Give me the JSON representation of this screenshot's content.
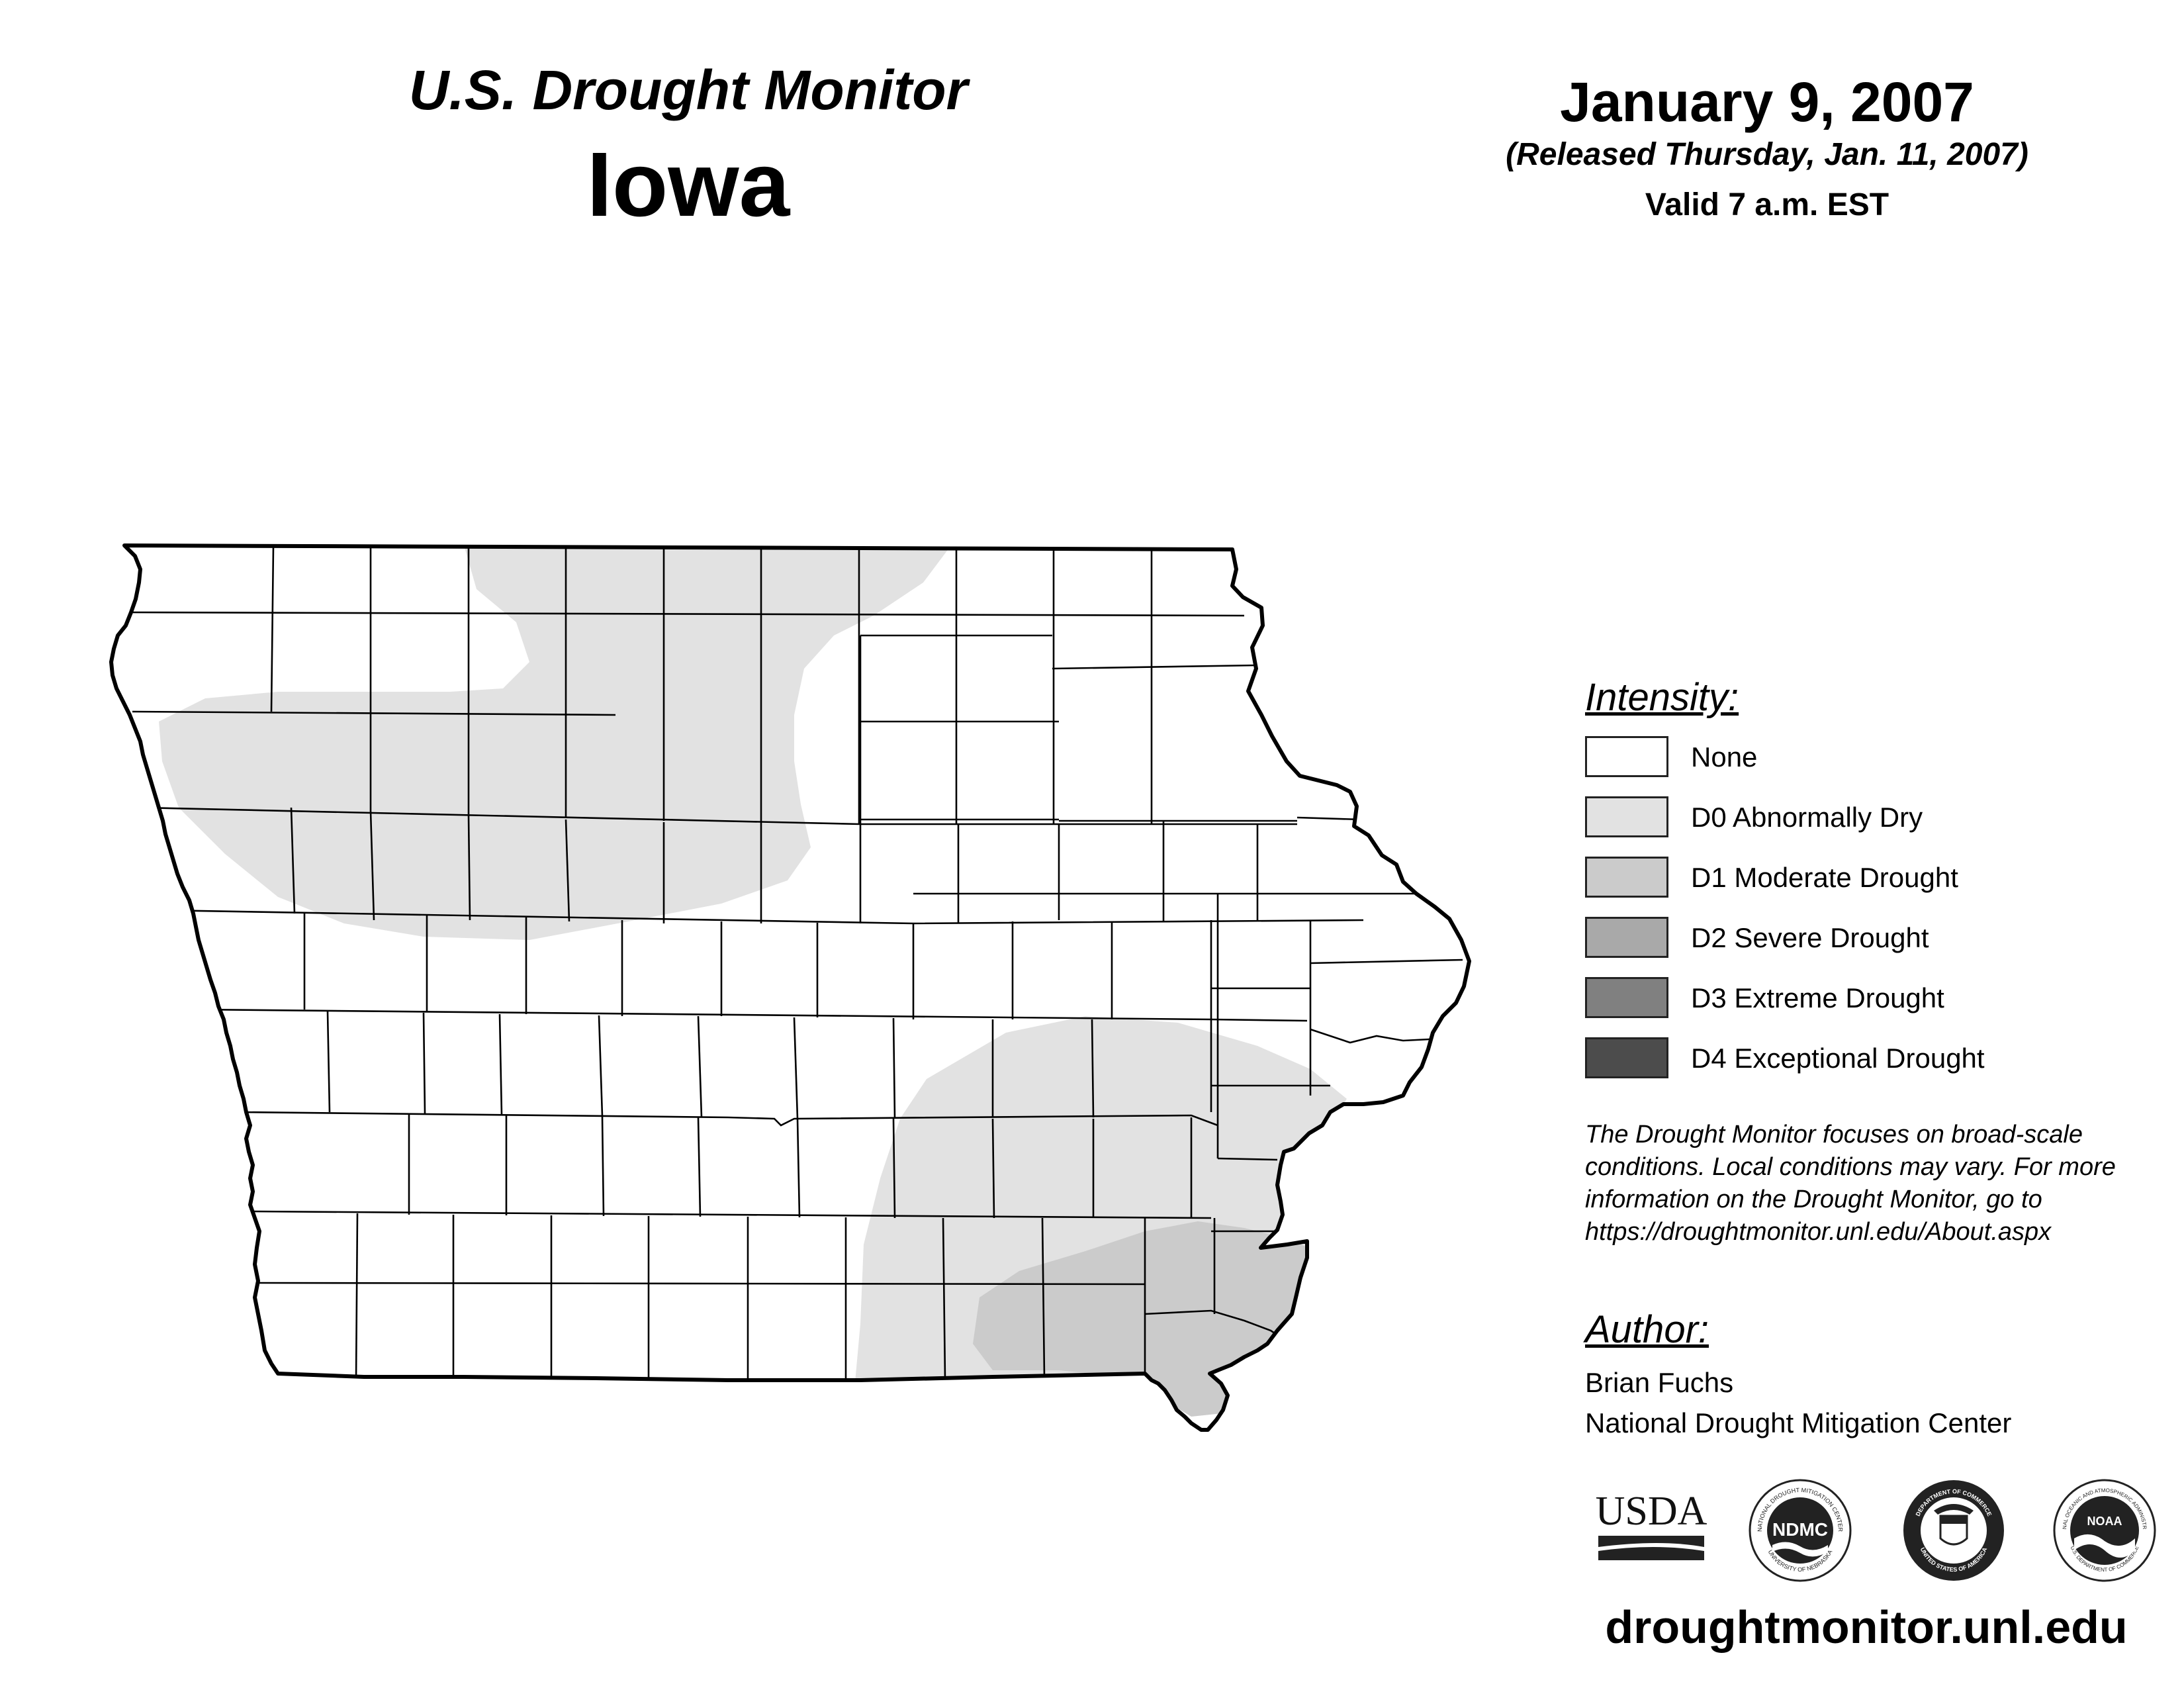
{
  "header": {
    "monitor_title": "U.S. Drought Monitor",
    "state": "Iowa",
    "date": "January 9, 2007",
    "released": "(Released Thursday, Jan. 11, 2007)",
    "valid": "Valid 7 a.m. EST"
  },
  "legend": {
    "title": "Intensity:",
    "items": [
      {
        "label": "None",
        "color": "#ffffff"
      },
      {
        "label": "D0 Abnormally Dry",
        "color": "#e2e2e2"
      },
      {
        "label": "D1 Moderate Drought",
        "color": "#cbcbcb"
      },
      {
        "label": "D2 Severe Drought",
        "color": "#a9a9a9"
      },
      {
        "label": "D3 Extreme Drought",
        "color": "#808080"
      },
      {
        "label": "D4 Exceptional Drought",
        "color": "#4c4c4c"
      }
    ]
  },
  "note": {
    "lines": [
      "The Drought Monitor focuses on broad-scale",
      "conditions. Local conditions may vary. For more",
      "information on the Drought Monitor, go to",
      "https://droughtmonitor.unl.edu/About.aspx"
    ]
  },
  "author": {
    "title": "Author:",
    "name": "Brian Fuchs",
    "org": "National Drought Mitigation Center"
  },
  "logos": {
    "usda": "USDA",
    "ndmc": "NDMC",
    "ndmc_ring": "NATIONAL DROUGHT MITIGATION CENTER",
    "ndmc_ring_bottom": "UNIVERSITY OF NEBRASKA",
    "commerce_ring": "DEPARTMENT OF COMMERCE",
    "commerce_ring_bottom": "UNITED STATES OF AMERICA",
    "noaa": "NOAA",
    "noaa_ring": "NATIONAL OCEANIC AND ATMOSPHERIC ADMINISTRATION",
    "noaa_ring_bottom": "U.S. DEPARTMENT OF COMMERCE"
  },
  "footer": {
    "url": "droughtmonitor.unl.edu"
  },
  "map": {
    "regions": [
      {
        "name": "north-central-d0",
        "category": "D0 Abnormally Dry",
        "color": "#e2e2e2"
      },
      {
        "name": "southeast-d0",
        "category": "D0 Abnormally Dry",
        "color": "#e2e2e2"
      },
      {
        "name": "southeast-d1",
        "category": "D1 Moderate Drought",
        "color": "#cbcbcb"
      }
    ]
  }
}
